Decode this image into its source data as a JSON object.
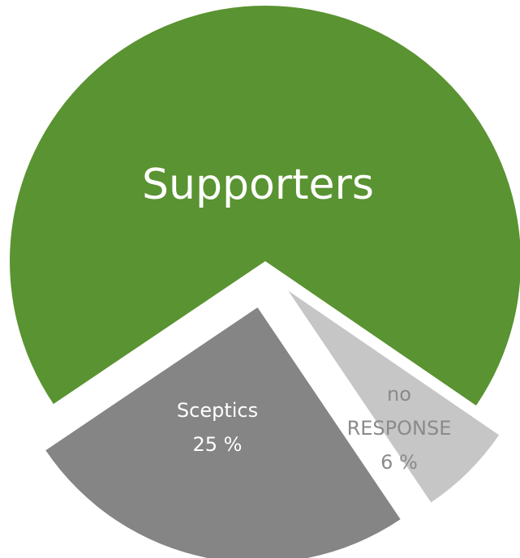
{
  "chart_data": {
    "type": "pie",
    "categories": [
      "Supporters",
      "Sceptics",
      "no RESPONSE"
    ],
    "values": [
      69,
      25,
      6
    ],
    "value_labels": [
      null,
      "25 %",
      "6 %"
    ],
    "colors": [
      "#5a9331",
      "#858585",
      "#c6c6c6"
    ]
  }
}
